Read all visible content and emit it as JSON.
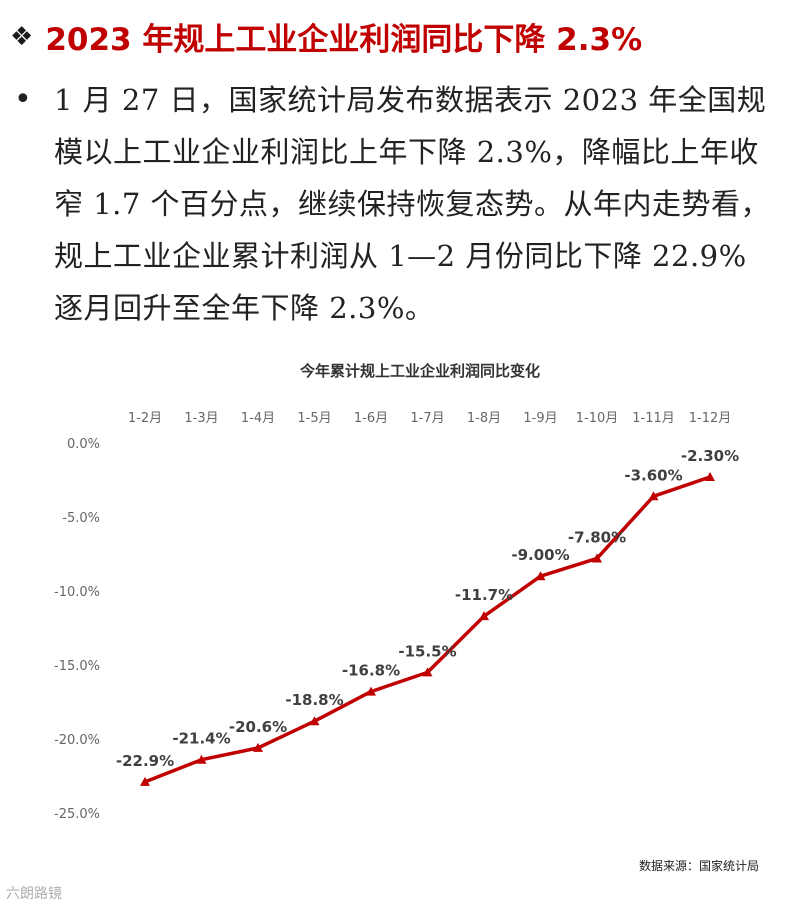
{
  "headline": {
    "bullet_glyph": "❖",
    "text": "2023 年规上工业企业利润同比下降 2.3%"
  },
  "paragraph": {
    "bullet_glyph": "•",
    "text": "1 月 27 日，国家统计局发布数据表示 2023 年全国规模以上工业企业利润比上年下降 2.3%，降幅比上年收窄 1.7 个百分点，继续保持恢复态势。从年内走势看，规上工业企业累计利润从 1—2 月份同比下降 22.9%逐月回升至全年下降 2.3%。"
  },
  "chart_data": {
    "type": "line",
    "title": "今年累计规上工业企业利润同比变化",
    "categories": [
      "1-2月",
      "1-3月",
      "1-4月",
      "1-5月",
      "1-6月",
      "1-7月",
      "1-8月",
      "1-9月",
      "1-10月",
      "1-11月",
      "1-12月"
    ],
    "series": [
      {
        "values": [
          -22.9,
          -21.4,
          -20.6,
          -18.8,
          -16.8,
          -15.5,
          -11.7,
          -9.0,
          -7.8,
          -3.6,
          -2.3
        ],
        "data_labels": [
          "-22.9%",
          "-21.4%",
          "-20.6%",
          "-18.8%",
          "-16.8%",
          "-15.5%",
          "-11.7%",
          "-9.00%",
          "-7.80%",
          "-3.60%",
          "-2.30%"
        ],
        "color": "#c00000"
      }
    ],
    "y_ticks": [
      0,
      -5,
      -10,
      -15,
      -20,
      -25
    ],
    "y_tick_labels": [
      "0.0%",
      "-5.0%",
      "-10.0%",
      "-15.0%",
      "-20.0%",
      "-25.0%"
    ],
    "ylim": [
      -25,
      0
    ],
    "x_axis_position": "top",
    "grid": false,
    "legend": "none"
  },
  "source_note": "数据来源：国家统计局",
  "watermark": "六朗路镜"
}
